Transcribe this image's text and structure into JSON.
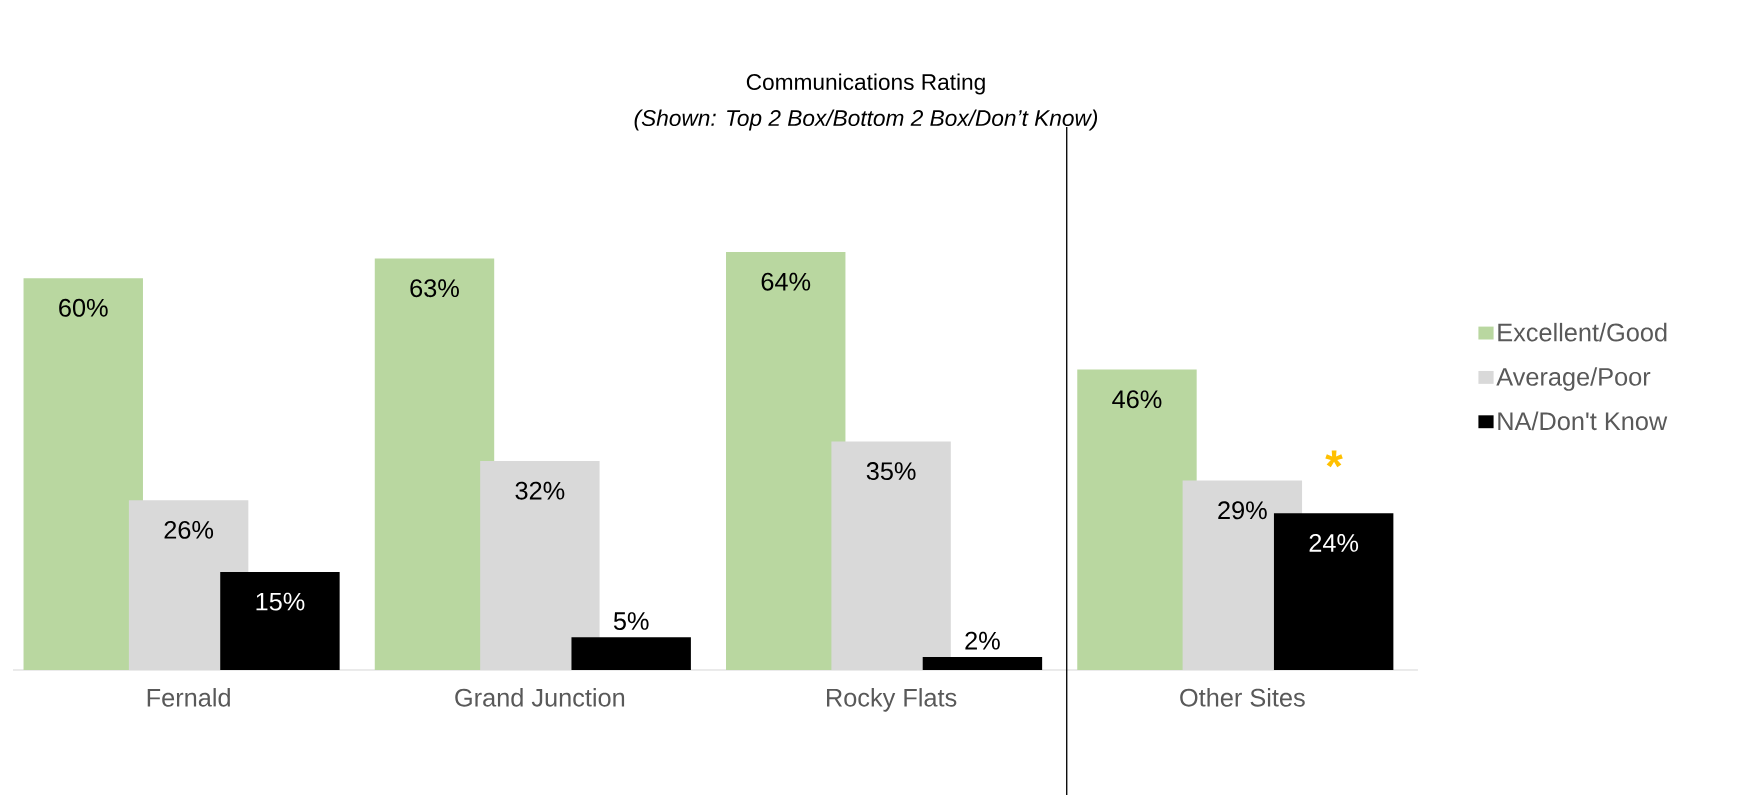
{
  "chart_data": {
    "type": "bar",
    "title": "Communications Rating",
    "subtitle": "(Shown: Top 2 Box/Bottom 2 Box/Don’t Know)",
    "categories": [
      "Fernald",
      "Grand Junction",
      "Rocky Flats",
      "Other Sites"
    ],
    "series": [
      {
        "name": "Excellent/Good",
        "color": "#b9d7a0",
        "values": [
          60,
          63,
          64,
          46
        ],
        "value_labels": [
          "60%",
          "63%",
          "64%",
          "46%"
        ]
      },
      {
        "name": "Average/Poor",
        "color": "#d9d9d9",
        "values": [
          26,
          32,
          35,
          29
        ],
        "value_labels": [
          "26%",
          "32%",
          "35%",
          "29%"
        ]
      },
      {
        "name": "NA/Don't Know",
        "color": "#000000",
        "values": [
          15,
          5,
          2,
          24
        ],
        "value_labels": [
          "15%",
          "5%",
          "2%",
          "24%"
        ]
      }
    ],
    "legend": "right",
    "grid": false,
    "annotations": [
      "*"
    ]
  }
}
